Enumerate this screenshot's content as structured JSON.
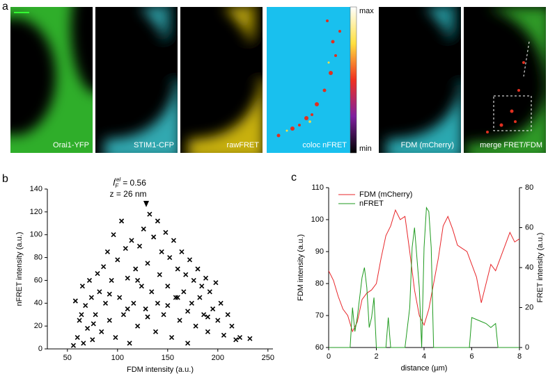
{
  "figure_a": {
    "panel_label": "a",
    "images": [
      "Orai1-YFP",
      "STIM1-CFP",
      "rawFRET",
      "coloc nFRET",
      "FDM (mCherry)",
      "merge FRET/FDM"
    ],
    "colorbar": {
      "max": "max",
      "min": "min"
    }
  },
  "chart_data": [
    {
      "type": "scatter",
      "panel_label": "b",
      "x_label": "FDM intensity (a.u.)",
      "y_label": "nFRET intensity (a.u.)",
      "annotation": {
        "symbol": "I",
        "subscript": "F",
        "superscript": "rel",
        "value_text": "= 0.56",
        "depth_text": "z = 26 nm"
      },
      "color": "#000000",
      "x": [
        58,
        60,
        62,
        65,
        66,
        68,
        70,
        72,
        74,
        75,
        78,
        80,
        82,
        84,
        86,
        88,
        90,
        92,
        94,
        96,
        98,
        100,
        102,
        104,
        106,
        108,
        110,
        112,
        114,
        116,
        118,
        120,
        122,
        124,
        126,
        128,
        130,
        132,
        134,
        136,
        138,
        140,
        142,
        144,
        146,
        148,
        150,
        152,
        154,
        156,
        158,
        160,
        162,
        164,
        166,
        168,
        170,
        172,
        174,
        176,
        178,
        180,
        182,
        184,
        186,
        188,
        190,
        192,
        195,
        198,
        200,
        203,
        206,
        210,
        214,
        218,
        222,
        232,
        56,
        64,
        76,
        92,
        110,
        130,
        150,
        170,
        190,
        120,
        140,
        160
      ],
      "values": [
        42,
        10,
        25,
        55,
        5,
        38,
        18,
        60,
        45,
        8,
        30,
        66,
        50,
        15,
        72,
        40,
        85,
        25,
        60,
        100,
        10,
        78,
        45,
        112,
        30,
        88,
        62,
        5,
        95,
        40,
        70,
        20,
        90,
        55,
        105,
        35,
        75,
        118,
        50,
        98,
        15,
        112,
        65,
        85,
        30,
        102,
        55,
        80,
        10,
        95,
        45,
        70,
        25,
        85,
        50,
        65,
        5,
        78,
        40,
        60,
        20,
        70,
        45,
        55,
        30,
        62,
        15,
        50,
        35,
        58,
        25,
        40,
        12,
        30,
        20,
        8,
        10,
        9,
        3,
        30,
        22,
        48,
        35,
        28,
        38,
        33,
        28,
        60,
        40,
        45
      ],
      "xlim": [
        30,
        255
      ],
      "xticks": [
        50,
        100,
        150,
        200,
        250
      ],
      "ylim": [
        0,
        140
      ],
      "yticks": [
        0,
        20,
        40,
        60,
        80,
        100,
        120,
        140
      ]
    },
    {
      "type": "line",
      "panel_label": "c",
      "x_label": "distance (µm)",
      "y_label": "FDM intensity (a.u.)",
      "y2_label": "FRET intensity (a.u.)",
      "legend": "upper left",
      "series": [
        {
          "name": "FDM (mCherry)",
          "color": "#e8262a",
          "x": [
            0,
            0.2,
            0.4,
            0.6,
            0.8,
            1.0,
            1.2,
            1.4,
            1.6,
            1.8,
            2.0,
            2.2,
            2.4,
            2.6,
            2.8,
            3.0,
            3.2,
            3.4,
            3.6,
            3.8,
            4.0,
            4.2,
            4.4,
            4.6,
            4.8,
            5.0,
            5.2,
            5.4,
            5.6,
            5.8,
            6.0,
            6.2,
            6.4,
            6.6,
            6.8,
            7.0,
            7.2,
            7.4,
            7.6,
            7.8,
            8.0
          ],
          "values": [
            84,
            81,
            76,
            72,
            70,
            65,
            68,
            75,
            77,
            78,
            80,
            88,
            95,
            98,
            103,
            100,
            101,
            90,
            78,
            70,
            67,
            72,
            80,
            88,
            98,
            101,
            97,
            92,
            91,
            90,
            86,
            82,
            74,
            80,
            86,
            84,
            88,
            92,
            96,
            93,
            94
          ]
        },
        {
          "name": "nFRET",
          "color": "#1e9a1e",
          "axis": "y2",
          "x": [
            0,
            0.9,
            1.0,
            1.1,
            1.2,
            1.4,
            1.5,
            1.6,
            1.7,
            1.8,
            1.9,
            2.0,
            2.4,
            2.5,
            2.6,
            3.2,
            3.4,
            3.5,
            3.6,
            3.8,
            3.9,
            4.0,
            4.1,
            4.2,
            4.3,
            4.4,
            5.9,
            6.0,
            6.2,
            6.4,
            6.6,
            6.8,
            7.0,
            7.1,
            8.0
          ],
          "values": [
            0,
            0,
            20,
            8,
            15,
            35,
            40,
            30,
            10,
            15,
            25,
            0,
            0,
            15,
            0,
            0,
            20,
            50,
            60,
            30,
            0,
            50,
            70,
            68,
            50,
            0,
            0,
            15,
            14,
            13,
            12,
            10,
            12,
            0,
            0
          ]
        }
      ],
      "xlim": [
        0,
        8
      ],
      "xticks": [
        0,
        2,
        4,
        6,
        8
      ],
      "ylim": [
        60,
        110
      ],
      "yticks": [
        60,
        70,
        80,
        90,
        100,
        110
      ],
      "y2lim": [
        0,
        80
      ],
      "y2ticks": [
        0,
        20,
        40,
        60,
        80
      ]
    }
  ]
}
